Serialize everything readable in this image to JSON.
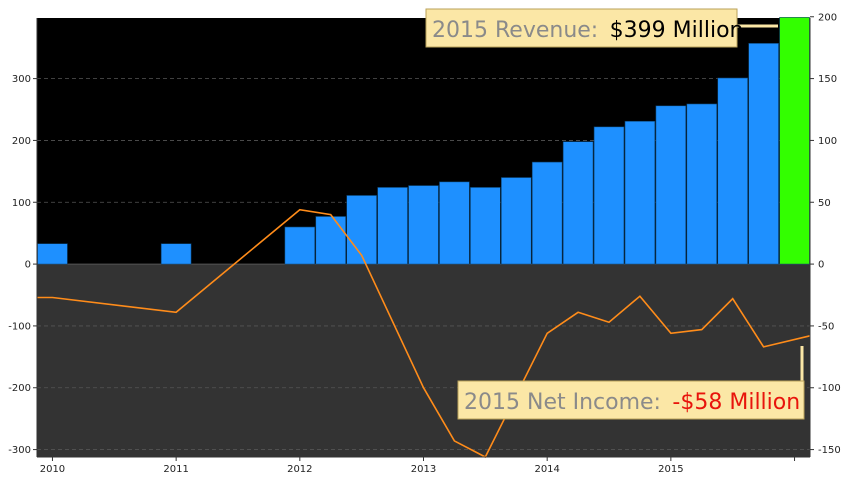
{
  "chart_data": {
    "type": "bar",
    "x_ticks": [
      "2010",
      "2011",
      "2012",
      "2013",
      "2014",
      "2015"
    ],
    "left_axis": {
      "ticks": [
        "300",
        "200",
        "100",
        "0",
        "-100",
        "-200",
        "-300"
      ],
      "ylim": [
        -312,
        398
      ]
    },
    "right_axis": {
      "ticks": [
        "200",
        "150",
        "100",
        "50",
        "0",
        "-50",
        "-100",
        "-150"
      ],
      "ylim": [
        -156,
        199
      ]
    },
    "revenue": {
      "axis": "left",
      "color": "#1e90ff",
      "highlight_color": "#33ff00",
      "values": [
        33,
        0,
        0,
        0,
        33,
        0,
        0,
        0,
        60,
        77,
        111,
        124,
        127,
        133,
        124,
        140,
        165,
        198,
        222,
        231,
        256,
        259,
        301,
        357,
        399
      ],
      "highlight_index": 24
    },
    "net_income": {
      "axis": "right",
      "color": "#ff8c1a",
      "points": [
        {
          "x": 0.0,
          "y": -27
        },
        {
          "x": 0.5,
          "y": -27
        },
        {
          "x": 4.5,
          "y": -39
        },
        {
          "x": 8.5,
          "y": 44
        },
        {
          "x": 9.5,
          "y": 40
        },
        {
          "x": 10.5,
          "y": 7
        },
        {
          "x": 12.5,
          "y": -100
        },
        {
          "x": 13.5,
          "y": -143
        },
        {
          "x": 14.5,
          "y": -156
        },
        {
          "x": 16.5,
          "y": -56
        },
        {
          "x": 17.5,
          "y": -39
        },
        {
          "x": 18.5,
          "y": -47
        },
        {
          "x": 19.5,
          "y": -26
        },
        {
          "x": 20.5,
          "y": -56
        },
        {
          "x": 21.5,
          "y": -53
        },
        {
          "x": 22.5,
          "y": -28
        },
        {
          "x": 23.5,
          "y": -67
        },
        {
          "x": 25.0,
          "y": -58
        }
      ]
    },
    "bg_positive": "#000000",
    "bg_negative": "#333333",
    "annotations": {
      "revenue": {
        "label": "2015 Revenue:",
        "value": "$399 Million",
        "value_color": "#000000"
      },
      "net_income": {
        "label": "2015 Net Income:",
        "value": "-$58 Million",
        "value_color": "#e8140c"
      }
    }
  }
}
